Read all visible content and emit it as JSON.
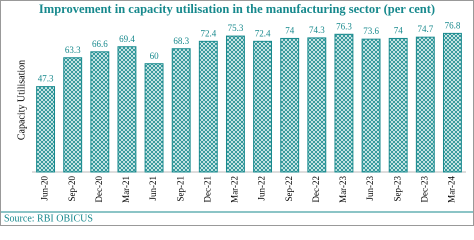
{
  "chart_data": {
    "type": "bar",
    "title": "Improvement in capacity utilisation in the manufacturing sector (per cent)",
    "y_label": "Capacity Utilisation",
    "source": "Source: RBI OBICUS",
    "categories": [
      "Jun-20",
      "Sep-20",
      "Dec-20",
      "Mar-21",
      "Jun-21",
      "Sep-21",
      "Dec-21",
      "Mar-22",
      "Jun-22",
      "Sep-22",
      "Dec-22",
      "Mar-23",
      "Jun-23",
      "Sep-23",
      "Dec-23",
      "Mar-24"
    ],
    "values": [
      47.3,
      63.3,
      66.6,
      69.4,
      60,
      68.3,
      72.4,
      75.3,
      72.4,
      74,
      74.3,
      76.3,
      73.6,
      74,
      74.7,
      76.8
    ],
    "color": "#17898d",
    "ylim": [
      0,
      82
    ]
  }
}
